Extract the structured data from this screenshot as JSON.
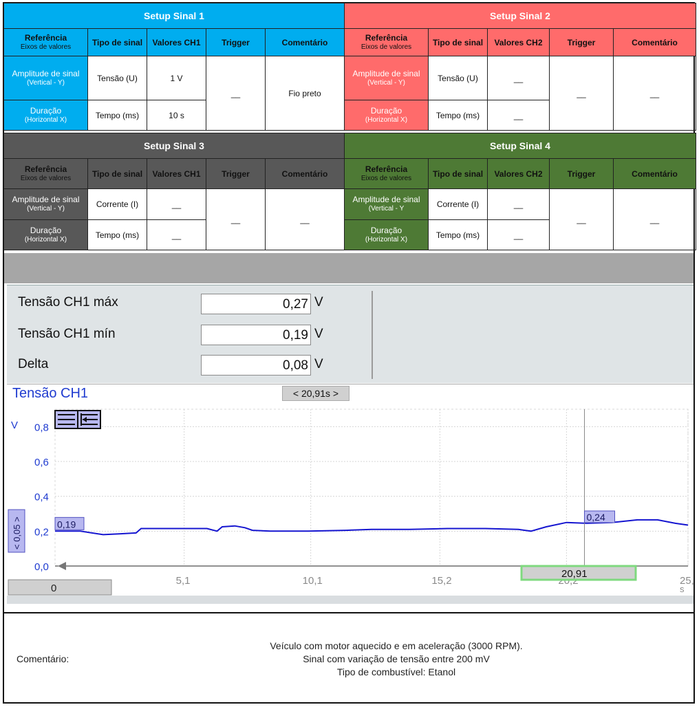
{
  "setups": [
    {
      "title": "Setup Sinal 1",
      "headers": {
        "ref": "Referência",
        "ref_sub": "Eixos de valores",
        "tipo": "Tipo de sinal",
        "valores": "Valores CH1",
        "trigger": "Trigger",
        "comentario": "Comentário"
      },
      "row1": {
        "side": "Amplitude de sinal",
        "side_sub": "(Vertical - Y)",
        "tipo": "Tensão (U)",
        "valor": "1 V"
      },
      "row2": {
        "side": "Duração",
        "side_sub": "(Horizontal X)",
        "tipo": "Tempo (ms)",
        "valor": "10 s"
      },
      "trigger": "__",
      "comentario": "Fio preto"
    },
    {
      "title": "Setup Sinal 2",
      "headers": {
        "ref": "Referência",
        "ref_sub": "Eixos de valores",
        "tipo": "Tipo de sinal",
        "valores": "Valores CH2",
        "trigger": "Trigger",
        "comentario": "Comentário"
      },
      "row1": {
        "side": "Amplitude de sinal",
        "side_sub": "(Vertical - Y)",
        "tipo": "Tensão (U)",
        "valor": "__"
      },
      "row2": {
        "side": "Duração",
        "side_sub": "(Horizontal X)",
        "tipo": "Tempo (ms)",
        "valor": "__"
      },
      "trigger": "__",
      "comentario": "__"
    },
    {
      "title": "Setup Sinal 3",
      "headers": {
        "ref": "Referência",
        "ref_sub": "Eixos de valores",
        "tipo": "Tipo de sinal",
        "valores": "Valores CH1",
        "trigger": "Trigger",
        "comentario": "Comentário"
      },
      "row1": {
        "side": "Amplitude de sinal",
        "side_sub": "(Vertical - Y)",
        "tipo": "Corrente (I)",
        "valor": "__"
      },
      "row2": {
        "side": "Duração",
        "side_sub": "(Horizontal X)",
        "tipo": "Tempo (ms)",
        "valor": "__"
      },
      "trigger": "__",
      "comentario": "__"
    },
    {
      "title": "Setup Sinal 4",
      "headers": {
        "ref": "Referência",
        "ref_sub": "Eixos de valores",
        "tipo": "Tipo de sinal",
        "valores": "Valores CH2",
        "trigger": "Trigger",
        "comentario": "Comentário"
      },
      "row1": {
        "side": "Amplitude de sinal",
        "side_sub": "(Vertical - Y",
        "tipo": "Corrente (I)",
        "valor": "__"
      },
      "row2": {
        "side": "Duração",
        "side_sub": "(Horizontal X)",
        "tipo": "Tempo (ms)",
        "valor": "__"
      },
      "trigger": "__",
      "comentario": "__"
    }
  ],
  "colors": {
    "sinal1": "#00adef",
    "sinal2": "#ff6b6b",
    "sinal3": "#585858",
    "sinal4": "#4e7a35",
    "trace": "#1515d0"
  },
  "measurements": [
    {
      "label": "Tensão CH1 máx",
      "value": "0,27",
      "unit": "V"
    },
    {
      "label": "Tensão CH1 mín",
      "value": "0,19",
      "unit": "V"
    },
    {
      "label": "Delta",
      "value": "0,08",
      "unit": "V"
    }
  ],
  "scope": {
    "title": "Tensão CH1",
    "cursor_label": "< 20,91s >",
    "y_unit": "V",
    "y_scale_label": "< 0,05 >",
    "start_marker": "0,19",
    "cursor_marker": "0,24",
    "cursor_time": "20,91",
    "x_start_box": "0",
    "x_unit": "s",
    "toolbar_icons": [
      "align-lines-icon",
      "arrow-left-lines-icon"
    ]
  },
  "chart_data": {
    "type": "line",
    "title": "Tensão CH1",
    "xlabel": "s",
    "ylabel": "V",
    "xlim": [
      0,
      25
    ],
    "ylim": [
      0,
      0.9
    ],
    "x_ticks": [
      "5,1",
      "10,1",
      "15,2",
      "20,2",
      "25,"
    ],
    "y_ticks": [
      "0,0",
      "0,2",
      "0,4",
      "0,6",
      "0,8"
    ],
    "cursor_x": 20.91,
    "series": [
      {
        "x": [
          0,
          1.0,
          1.9,
          2.6,
          3.2,
          3.4,
          4.5,
          6.0,
          6.4,
          6.6,
          7.1,
          7.5,
          7.8,
          8.5,
          10.0,
          11.5,
          12.5,
          14.0,
          15.5,
          17.0,
          18.3,
          18.8,
          19.4,
          20.2,
          21.0,
          22.0,
          23.0,
          23.8,
          24.5,
          25.0
        ],
        "y": [
          0.2,
          0.2,
          0.18,
          0.185,
          0.19,
          0.215,
          0.215,
          0.215,
          0.2,
          0.225,
          0.23,
          0.22,
          0.205,
          0.2,
          0.2,
          0.205,
          0.21,
          0.21,
          0.215,
          0.215,
          0.21,
          0.2,
          0.225,
          0.25,
          0.245,
          0.25,
          0.265,
          0.265,
          0.245,
          0.235
        ]
      }
    ]
  },
  "comment": {
    "label": "Comentário:",
    "lines": [
      "Veículo com motor aquecido e em aceleração (3000 RPM).",
      "Sinal com variação de tensão entre 200 mV",
      "Tipo de combustível: Etanol"
    ]
  }
}
